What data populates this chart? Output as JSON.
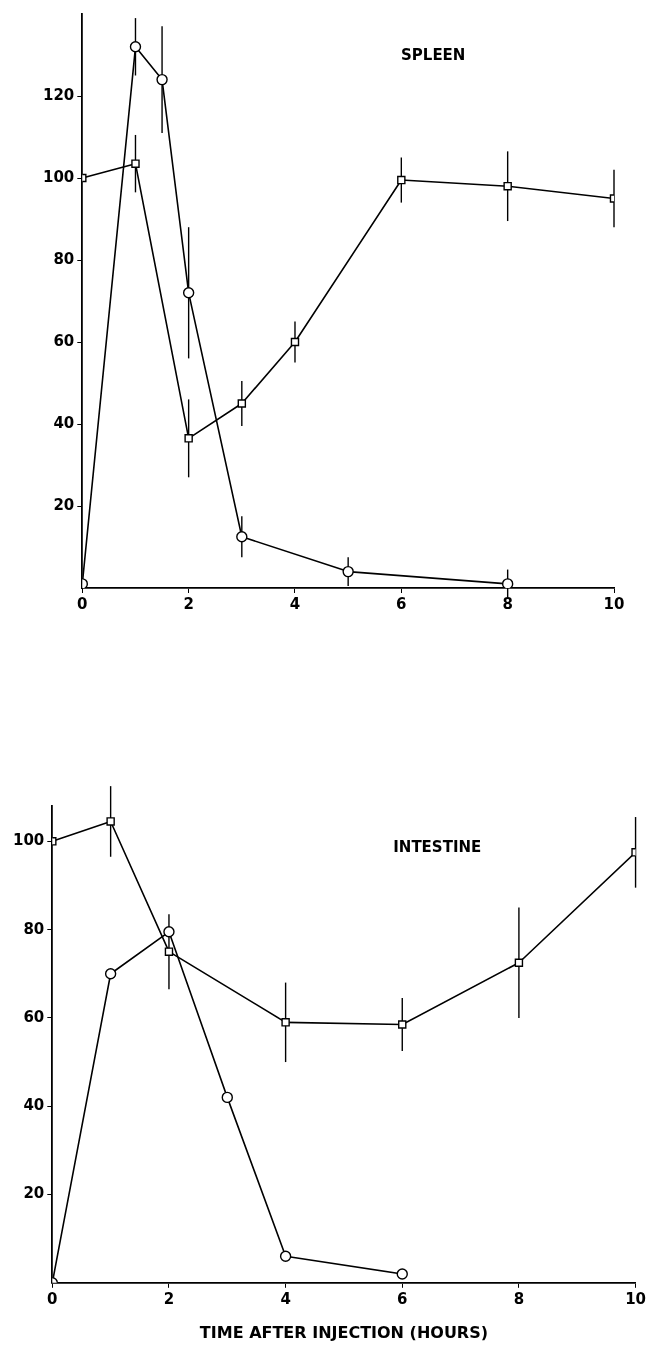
{
  "chart_data": [
    {
      "type": "line",
      "title": "SPLEEN",
      "xlim": [
        0,
        10
      ],
      "xticks": [
        0,
        2,
        4,
        6,
        8,
        10
      ],
      "ylim": [
        0,
        140
      ],
      "yticks": [
        20,
        40,
        60,
        80,
        100,
        120
      ],
      "grid": false,
      "legend": false,
      "line_style": "solid",
      "series": [
        {
          "color": "#000000",
          "marker": "circle",
          "x": [
            0,
            1,
            1.5,
            2,
            3,
            5,
            8
          ],
          "values": [
            1,
            132,
            124,
            72,
            12.5,
            4,
            1
          ],
          "errors": [
            null,
            7,
            13,
            16,
            5,
            3.5,
            3.5
          ]
        },
        {
          "color": "#000000",
          "marker": "square",
          "x": [
            0,
            1,
            2,
            3,
            4,
            6,
            8,
            10
          ],
          "values": [
            100,
            103.5,
            36.5,
            45,
            60,
            99.5,
            98,
            95
          ],
          "errors": [
            null,
            7,
            9.5,
            5.5,
            5,
            5.5,
            8.5,
            7
          ]
        }
      ]
    },
    {
      "type": "line",
      "title": "INTESTINE",
      "xlabel": "TIME AFTER INJECTION (HOURS)",
      "xlim": [
        0,
        10
      ],
      "xticks": [
        0,
        2,
        4,
        6,
        8,
        10
      ],
      "ylim": [
        0,
        108
      ],
      "yticks": [
        20,
        40,
        60,
        80,
        100
      ],
      "grid": false,
      "legend": false,
      "line_style": "solid",
      "series": [
        {
          "color": "#000000",
          "marker": "circle",
          "x": [
            0,
            1,
            2,
            3,
            4,
            6
          ],
          "values": [
            0,
            70,
            79.5,
            42,
            6,
            2
          ]
        },
        {
          "color": "#000000",
          "marker": "square",
          "x": [
            0,
            1,
            2,
            4,
            6,
            8,
            10
          ],
          "values": [
            100,
            104.5,
            75,
            59,
            58.5,
            72.5,
            97.5
          ],
          "errors": [
            null,
            8,
            8.5,
            9,
            6,
            12.5,
            8
          ]
        }
      ]
    }
  ]
}
